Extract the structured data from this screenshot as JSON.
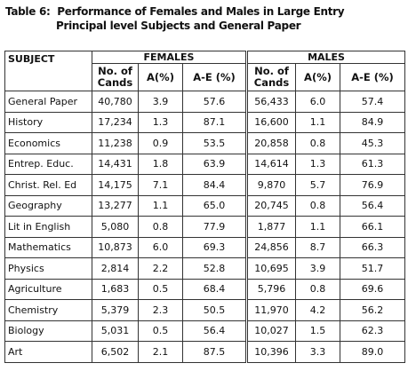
{
  "title": {
    "label": "Table 6:",
    "line1": "Performance of Females and Males in Large Entry",
    "line2": "Principal level Subjects and General Paper"
  },
  "table": {
    "subject_header": "SUBJECT",
    "groups": [
      "FEMALES",
      "MALES"
    ],
    "columns": [
      "No. of Cands",
      "A(%)",
      "A-E (%)",
      "No. of Cands",
      "A(%)",
      "A-E (%)"
    ],
    "rows": [
      [
        "General Paper",
        "40,780",
        "3.9",
        "57.6",
        "56,433",
        "6.0",
        "57.4"
      ],
      [
        "History",
        "17,234",
        "1.3",
        "87.1",
        "16,600",
        "1.1",
        "84.9"
      ],
      [
        "Economics",
        "11,238",
        "0.9",
        "53.5",
        "20,858",
        "0.8",
        "45.3"
      ],
      [
        "Entrep. Educ.",
        "14,431",
        "1.8",
        "63.9",
        "14,614",
        "1.3",
        "61.3"
      ],
      [
        "Christ. Rel. Ed",
        "14,175",
        "7.1",
        "84.4",
        "9,870",
        "5.7",
        "76.9"
      ],
      [
        "Geography",
        "13,277",
        "1.1",
        "65.0",
        "20,745",
        "0.8",
        "56.4"
      ],
      [
        "Lit in English",
        "5,080",
        "0.8",
        "77.9",
        "1,877",
        "1.1",
        "66.1"
      ],
      [
        "Mathematics",
        "10,873",
        "6.0",
        "69.3",
        "24,856",
        "8.7",
        "66.3"
      ],
      [
        "Physics",
        "2,814",
        "2.2",
        "52.8",
        "10,695",
        "3.9",
        "51.7"
      ],
      [
        "Agriculture",
        "1,683",
        "0.5",
        "68.4",
        "5,796",
        "0.8",
        "69.6"
      ],
      [
        "Chemistry",
        "5,379",
        "2.3",
        "50.5",
        "11,970",
        "4.2",
        "56.2"
      ],
      [
        "Biology",
        "5,031",
        "0.5",
        "56.4",
        "10,027",
        "1.5",
        "62.3"
      ],
      [
        "Art",
        "6,502",
        "2.1",
        "87.5",
        "10,396",
        "3.3",
        "89.0"
      ]
    ]
  }
}
